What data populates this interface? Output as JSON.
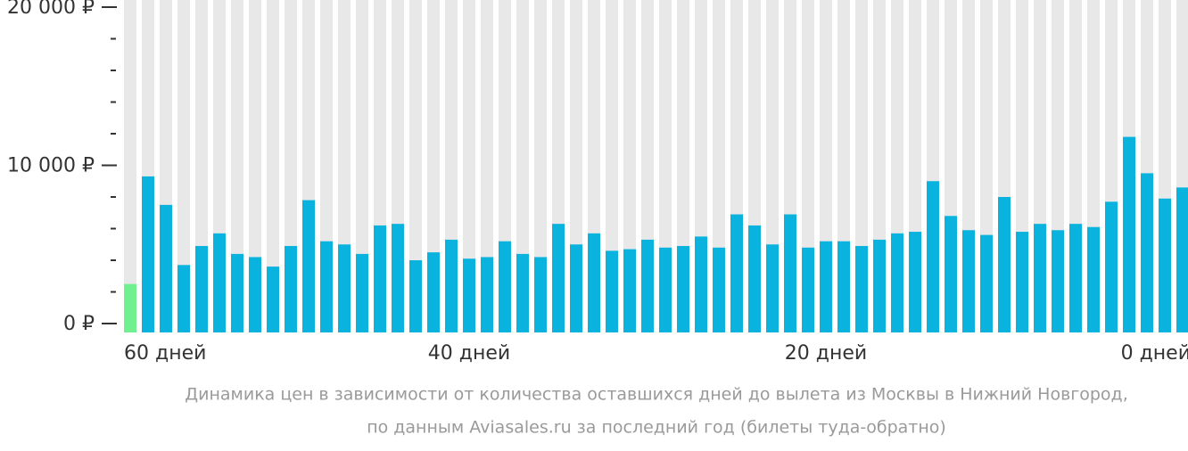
{
  "chart_data": {
    "type": "bar",
    "caption": [
      "Динамика цен в зависимости от количества оставшихся дней до вылета из Москвы в Нижний Новгород,",
      "по данным Aviasales.ru за последний год (билеты туда-обратно)"
    ],
    "categories": [
      "60 дней",
      null,
      null,
      null,
      null,
      null,
      null,
      null,
      null,
      null,
      null,
      null,
      null,
      null,
      null,
      null,
      null,
      null,
      null,
      "40 дней",
      null,
      null,
      null,
      null,
      null,
      null,
      null,
      null,
      null,
      null,
      null,
      null,
      null,
      null,
      null,
      null,
      null,
      null,
      null,
      "20 дней",
      null,
      null,
      null,
      null,
      null,
      null,
      null,
      null,
      null,
      null,
      null,
      null,
      null,
      null,
      null,
      null,
      null,
      null,
      null,
      "0 дней"
    ],
    "values": [
      2500,
      9300,
      7500,
      3700,
      4900,
      5700,
      4400,
      4200,
      3600,
      4900,
      7800,
      5200,
      5000,
      4400,
      6200,
      6300,
      4000,
      4500,
      5300,
      4100,
      4200,
      5200,
      4400,
      4200,
      6300,
      5000,
      5700,
      4600,
      4700,
      5300,
      4800,
      4900,
      5500,
      4800,
      6900,
      6200,
      5000,
      6900,
      4800,
      5200,
      5200,
      4900,
      5300,
      5700,
      5800,
      9000,
      6800,
      5900,
      5600,
      8000,
      5800,
      6300,
      5900,
      6300,
      6100,
      7700,
      11800,
      9500,
      7900,
      8600
    ],
    "color": "#0ab2de",
    "min_color": "#70f08e",
    "background_color": "#e8e8e8",
    "ylim": [
      0,
      20000
    ],
    "yticks": [
      {
        "value": 0,
        "label": "0 ₽"
      },
      {
        "value": 10000,
        "label": "10 000 ₽"
      },
      {
        "value": 20000,
        "label": "20 000 ₽"
      }
    ],
    "yminorticks": [
      2000,
      4000,
      6000,
      8000,
      12000,
      14000,
      16000,
      18000
    ]
  }
}
